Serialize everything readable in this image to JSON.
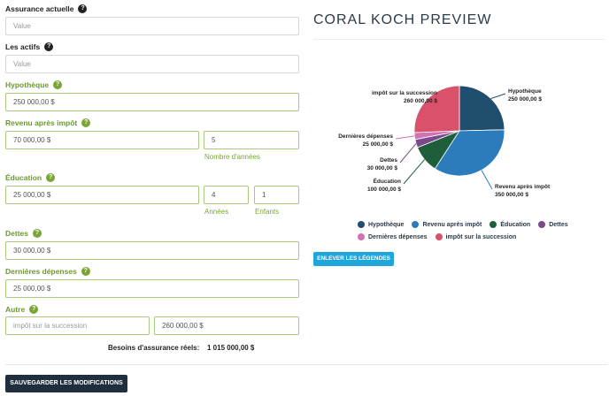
{
  "form": {
    "assurance": {
      "label": "Assurance actuelle",
      "placeholder": "Value"
    },
    "actifs": {
      "label": "Les actifs",
      "placeholder": "Value"
    },
    "hypotheque": {
      "label": "Hypothèque",
      "value": "250 000,00 $"
    },
    "revenu": {
      "label": "Revenu après impôt",
      "value": "70 000,00 $",
      "years": "5",
      "years_label": "Nombre d'années"
    },
    "education": {
      "label": "Éducation",
      "value": "25 000,00 $",
      "years": "4",
      "years_label": "Années",
      "children": "1",
      "children_label": "Enfants"
    },
    "dettes": {
      "label": "Dettes",
      "value": "30 000,00 $"
    },
    "depenses": {
      "label": "Dernières dépenses",
      "value": "25 000,00 $"
    },
    "autre": {
      "label": "Autre",
      "name_placeholder": "impôt sur la succession",
      "value": "260 000,00 $"
    },
    "total_label": "Besoins d'assurance réels:",
    "total_value": "1 015 000,00 $",
    "save_label": "SAUVEGARDER LES MODIFICATIONS",
    "help_glyph": "?"
  },
  "preview": {
    "title": "CORAL KOCH PREVIEW",
    "remove_legends_label": "ENLEVER LES LÉGENDES"
  },
  "chart_data": {
    "type": "pie",
    "slices": [
      {
        "name": "Hypothèque",
        "value": 250000,
        "label_value": "250 000,00 $",
        "color": "#1f4e6e"
      },
      {
        "name": "Revenu après impôt",
        "value": 350000,
        "label_value": "350 000,00 $",
        "color": "#2b7bbd"
      },
      {
        "name": "Éducation",
        "value": 100000,
        "label_value": "100 000,00 $",
        "color": "#1e5e3a"
      },
      {
        "name": "Dettes",
        "value": 30000,
        "label_value": "30 000,00 $",
        "color": "#7a4a8c"
      },
      {
        "name": "Dernières dépenses",
        "value": 25000,
        "label_value": "25 000,00 $",
        "color": "#d072b3"
      },
      {
        "name": "impôt sur la succession",
        "value": 260000,
        "label_value": "260 000,00 $",
        "color": "#d9516a"
      }
    ],
    "legend_placement": "bottom"
  }
}
